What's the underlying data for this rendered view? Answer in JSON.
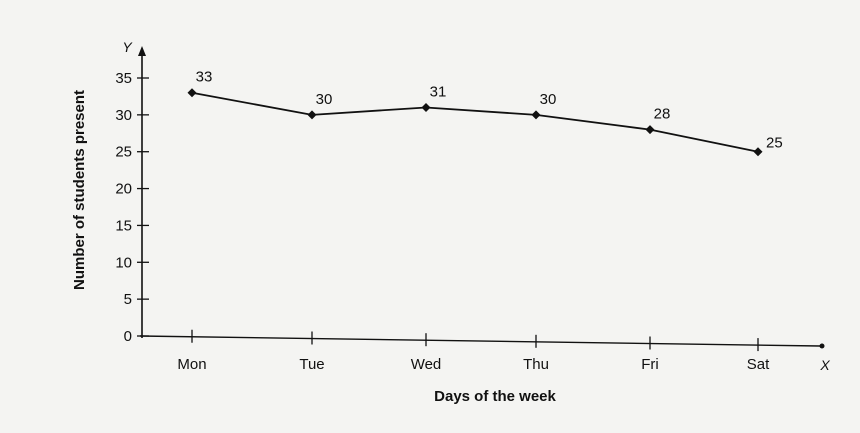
{
  "chart_data": {
    "type": "line",
    "categories": [
      "Mon",
      "Tue",
      "Wed",
      "Thu",
      "Fri",
      "Sat"
    ],
    "values": [
      33,
      30,
      31,
      30,
      28,
      25
    ],
    "xlabel": "Days of the week",
    "ylabel": "Number of students present",
    "x_axis_letter": "X",
    "y_axis_letter": "Y",
    "ylim": [
      0,
      35
    ],
    "yticks": [
      0,
      5,
      10,
      15,
      20,
      25,
      30,
      35
    ],
    "grid": false,
    "line_color": "#111111"
  }
}
